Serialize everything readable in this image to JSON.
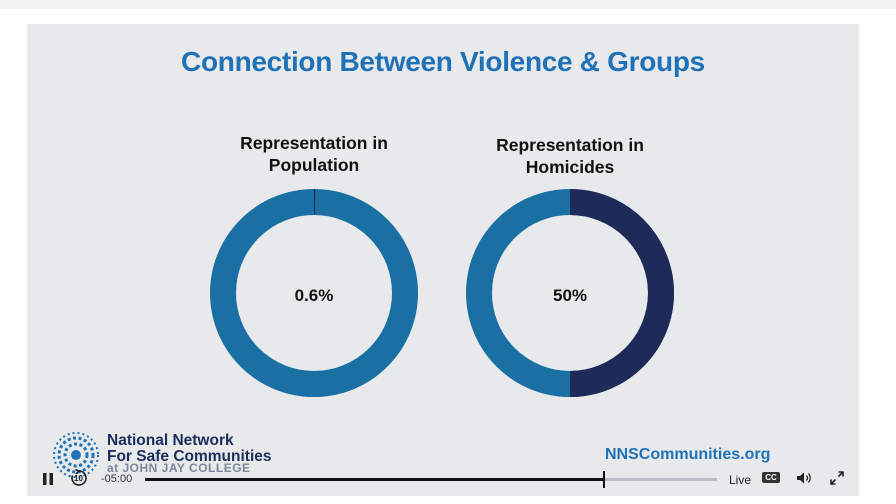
{
  "slide": {
    "title": "Connection Between Violence & Groups",
    "panels": [
      {
        "title_line1": "Representation in",
        "title_line2": "Population",
        "value_label": "0.6%",
        "value": 0.6
      },
      {
        "title_line1": "Representation in",
        "title_line2": "Homicides",
        "value_label": "50%",
        "value": 50
      }
    ],
    "footer": {
      "org_line1": "National Network",
      "org_line2": "For Safe Communities",
      "org_line3": "at JOHN JAY COLLEGE",
      "website": "NNSCommunities.org"
    }
  },
  "colors": {
    "ring_base": "#1a6fa3",
    "ring_highlight": "#1e2b58",
    "title_blue": "#1f72b8",
    "background": "#e8e9eb"
  },
  "player": {
    "time_remaining": "-05:00",
    "skip_back_label": "10",
    "live_label": "Live",
    "cc_label": "CC",
    "progress": 0.8,
    "icons": [
      "pause-icon",
      "replay-10-icon",
      "closed-captions-icon",
      "volume-icon",
      "fullscreen-icon"
    ]
  }
}
